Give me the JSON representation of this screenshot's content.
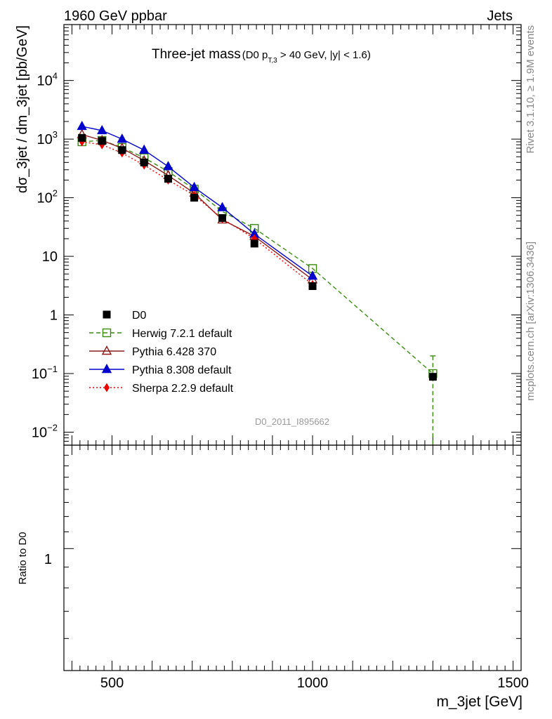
{
  "header": {
    "left": "1960 GeV ppbar",
    "right": "Jets"
  },
  "side_labels": {
    "rivet": "Rivet 3.1.10, ≥ 1.9M events",
    "mcplots": "mcplots.cern.ch [arXiv:1306.3436]"
  },
  "colors": {
    "data": "#000000",
    "herwig": "#3a8a10",
    "pythia6": "#8b1a1a",
    "pythia8": "#0000cc",
    "sherpa": "#ee0000"
  },
  "chart_data": [
    {
      "type": "line",
      "title": "Three-jet mass",
      "subtitle_parts": {
        "a": "(D0 p",
        "sub": "T,3",
        "b": " > 40 GeV, |y| < 1.6)"
      },
      "watermark": "D0_2011_I895662",
      "ylabel": "dσ_3jet / dm_3jet [pb/GeV]",
      "yscale": "log",
      "xlim": [
        380,
        1520
      ],
      "ylim": [
        0.006,
        90000
      ],
      "y_ticks": [
        {
          "value": 10000,
          "base": "10",
          "exp": "4"
        },
        {
          "value": 1000,
          "base": "10",
          "exp": "3"
        },
        {
          "value": 100,
          "base": "10",
          "exp": "2"
        },
        {
          "value": 10,
          "base": "10",
          "exp": ""
        },
        {
          "value": 1,
          "base": "1",
          "exp": ""
        },
        {
          "value": 0.1,
          "base": "10",
          "exp": "−1"
        },
        {
          "value": 0.01,
          "base": "10",
          "exp": "−2"
        }
      ],
      "legend_position": "bottom-left",
      "series": [
        {
          "key": "data",
          "name": "D0",
          "marker": "square-filled",
          "line": "none",
          "x": [
            425,
            475,
            525,
            580,
            640,
            705,
            775,
            855,
            1000,
            1300
          ],
          "y": [
            1050,
            930,
            650,
            400,
            210,
            100,
            45,
            16.5,
            3.1,
            0.088
          ]
        },
        {
          "key": "herwig",
          "name": "Herwig 7.2.1 default",
          "marker": "square-open",
          "line": "dashed",
          "x": [
            425,
            475,
            525,
            580,
            640,
            705,
            775,
            855,
            1000,
            1300
          ],
          "y": [
            900,
            950,
            720,
            480,
            280,
            140,
            58,
            30,
            6.2,
            0.1
          ],
          "err_last": {
            "up": 0.2,
            "down": 0.006
          }
        },
        {
          "key": "pythia6",
          "name": "Pythia 6.428 370",
          "marker": "triangle-open",
          "line": "solid",
          "x": [
            425,
            475,
            525,
            580,
            640,
            705,
            775,
            855,
            1000
          ],
          "y": [
            1200,
            950,
            700,
            430,
            240,
            120,
            42,
            22,
            4.0
          ]
        },
        {
          "key": "pythia8",
          "name": "Pythia 8.308 default",
          "marker": "triangle-filled",
          "line": "solid",
          "x": [
            425,
            475,
            525,
            580,
            640,
            705,
            775,
            855,
            1000
          ],
          "y": [
            1650,
            1400,
            1000,
            650,
            340,
            150,
            68,
            24,
            4.6
          ]
        },
        {
          "key": "sherpa",
          "name": "Sherpa 2.2.9 default",
          "marker": "diamond-filled",
          "line": "dotted",
          "x": [
            425,
            475,
            525,
            580,
            640,
            705,
            775,
            855,
            1000
          ],
          "y": [
            900,
            800,
            580,
            360,
            200,
            110,
            44,
            20,
            3.3
          ]
        }
      ]
    },
    {
      "type": "line",
      "ylabel": "Ratio to D0",
      "xlabel": "m_3jet [GeV]",
      "yscale": "log",
      "xlim": [
        380,
        1520
      ],
      "ylim": [
        0.5,
        1.8
      ],
      "y_tick_labels": [
        {
          "value": 1,
          "label": "1"
        }
      ],
      "x_tick_labels": [
        {
          "value": 500,
          "label": "500"
        },
        {
          "value": 1000,
          "label": "1000"
        },
        {
          "value": 1500,
          "label": "1500"
        }
      ],
      "series": []
    }
  ]
}
